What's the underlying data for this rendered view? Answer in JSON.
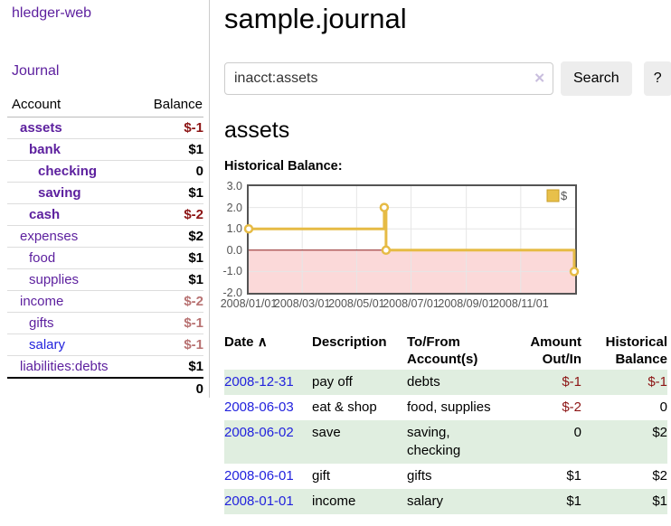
{
  "colors": {
    "link_purple": "#5c1f9e",
    "link_blue": "#2222dd",
    "negative_strong": "#8c1414",
    "negative_soft": "#b87272",
    "row_shade_green": "#e0eee0",
    "button_gray": "#ededed",
    "axis_text": "#545454"
  },
  "sidebar": {
    "brand": "hledger-web",
    "journal_link": "Journal",
    "table_headers": {
      "account": "Account",
      "balance": "Balance"
    },
    "rows": [
      {
        "name": "assets",
        "indent": 1,
        "bold": true,
        "name_style": "purple",
        "balance": "$-1",
        "balance_style": "neg-strong"
      },
      {
        "name": "bank",
        "indent": 2,
        "bold": true,
        "name_style": "purple",
        "balance": "$1",
        "balance_style": "normal"
      },
      {
        "name": "checking",
        "indent": 3,
        "bold": true,
        "name_style": "purple",
        "balance": "0",
        "balance_style": "normal"
      },
      {
        "name": "saving",
        "indent": 3,
        "bold": true,
        "name_style": "purple",
        "balance": "$1",
        "balance_style": "normal"
      },
      {
        "name": "cash",
        "indent": 2,
        "bold": true,
        "name_style": "purple",
        "balance": "$-2",
        "balance_style": "neg-strong"
      },
      {
        "name": "expenses",
        "indent": 1,
        "bold": false,
        "name_style": "purple",
        "balance": "$2",
        "balance_style": "normal"
      },
      {
        "name": "food",
        "indent": 2,
        "bold": false,
        "name_style": "purple",
        "balance": "$1",
        "balance_style": "normal"
      },
      {
        "name": "supplies",
        "indent": 2,
        "bold": false,
        "name_style": "purple",
        "balance": "$1",
        "balance_style": "normal"
      },
      {
        "name": "income",
        "indent": 1,
        "bold": false,
        "name_style": "purple",
        "balance": "$-2",
        "balance_style": "neg-soft"
      },
      {
        "name": "gifts",
        "indent": 2,
        "bold": false,
        "name_style": "purple",
        "balance": "$-1",
        "balance_style": "neg-soft"
      },
      {
        "name": "salary",
        "indent": 2,
        "bold": false,
        "name_style": "blue",
        "balance": "$-1",
        "balance_style": "neg-soft"
      },
      {
        "name": "liabilities:debts",
        "indent": 1,
        "bold": false,
        "name_style": "purple",
        "balance": "$1",
        "balance_style": "normal"
      }
    ],
    "total": "0"
  },
  "main": {
    "title": "sample.journal",
    "search": {
      "value": "inacct:assets",
      "clear_icon": "✕",
      "search_button": "Search",
      "help_button": "?"
    },
    "account_heading": "assets",
    "section_label": "Historical Balance:"
  },
  "chart_data": {
    "type": "line",
    "step": true,
    "title": "Historical Balance",
    "series": [
      {
        "name": "$",
        "color": "#e6bb45",
        "points": [
          [
            "2008-01-01",
            1
          ],
          [
            "2008-06-01",
            2
          ],
          [
            "2008-06-03",
            0
          ],
          [
            "2008-12-31",
            -1
          ]
        ]
      }
    ],
    "xrange": [
      "2008-01-01",
      "2009-01-01"
    ],
    "ylim": [
      -2,
      3
    ],
    "yticks": [
      {
        "v": 3,
        "label": "3.0"
      },
      {
        "v": 2,
        "label": "2.0"
      },
      {
        "v": 1,
        "label": "1.0"
      },
      {
        "v": 0,
        "label": "0.0"
      },
      {
        "v": -1,
        "label": "-1.0"
      },
      {
        "v": -2,
        "label": "-2.0"
      }
    ],
    "xticks": [
      {
        "date": "2008-01-01",
        "label": "2008/01/01"
      },
      {
        "date": "2008-03-01",
        "label": "2008/03/01"
      },
      {
        "date": "2008-05-01",
        "label": "2008/05/01"
      },
      {
        "date": "2008-07-01",
        "label": "2008/07/01"
      },
      {
        "date": "2008-09-01",
        "label": "2008/09/01"
      },
      {
        "date": "2008-11-01",
        "label": "2008/11/01"
      }
    ],
    "legend": {
      "label": "$",
      "fill": "#e8c04a",
      "border": "#c99e27",
      "position": "top-right"
    },
    "grid": true,
    "grid_color": "#e6e6e6",
    "negative_region_fill": "#fbd9d9",
    "zero_line_color": "#8b1a1a",
    "marker_fill": "#ffffff"
  },
  "register": {
    "headers": {
      "date": "Date",
      "sort_icon": "∧",
      "description": "Description",
      "accounts": "To/From Account(s)",
      "amount": "Amount Out/In",
      "balance": "Historical Balance"
    },
    "rows": [
      {
        "date": "2008-12-31",
        "description": "pay off",
        "accounts": "debts",
        "amount": "$-1",
        "amount_neg": true,
        "balance": "$-1",
        "balance_neg": true,
        "shaded": true
      },
      {
        "date": "2008-06-03",
        "description": "eat & shop",
        "accounts": "food, supplies",
        "amount": "$-2",
        "amount_neg": true,
        "balance": "0",
        "balance_neg": false,
        "shaded": false
      },
      {
        "date": "2008-06-02",
        "description": "save",
        "accounts": "saving, checking",
        "amount": "0",
        "amount_neg": false,
        "balance": "$2",
        "balance_neg": false,
        "shaded": true
      },
      {
        "date": "2008-06-01",
        "description": "gift",
        "accounts": "gifts",
        "amount": "$1",
        "amount_neg": false,
        "balance": "$2",
        "balance_neg": false,
        "shaded": false
      },
      {
        "date": "2008-01-01",
        "description": "income",
        "accounts": "salary",
        "amount": "$1",
        "amount_neg": false,
        "balance": "$1",
        "balance_neg": false,
        "shaded": true
      }
    ]
  }
}
